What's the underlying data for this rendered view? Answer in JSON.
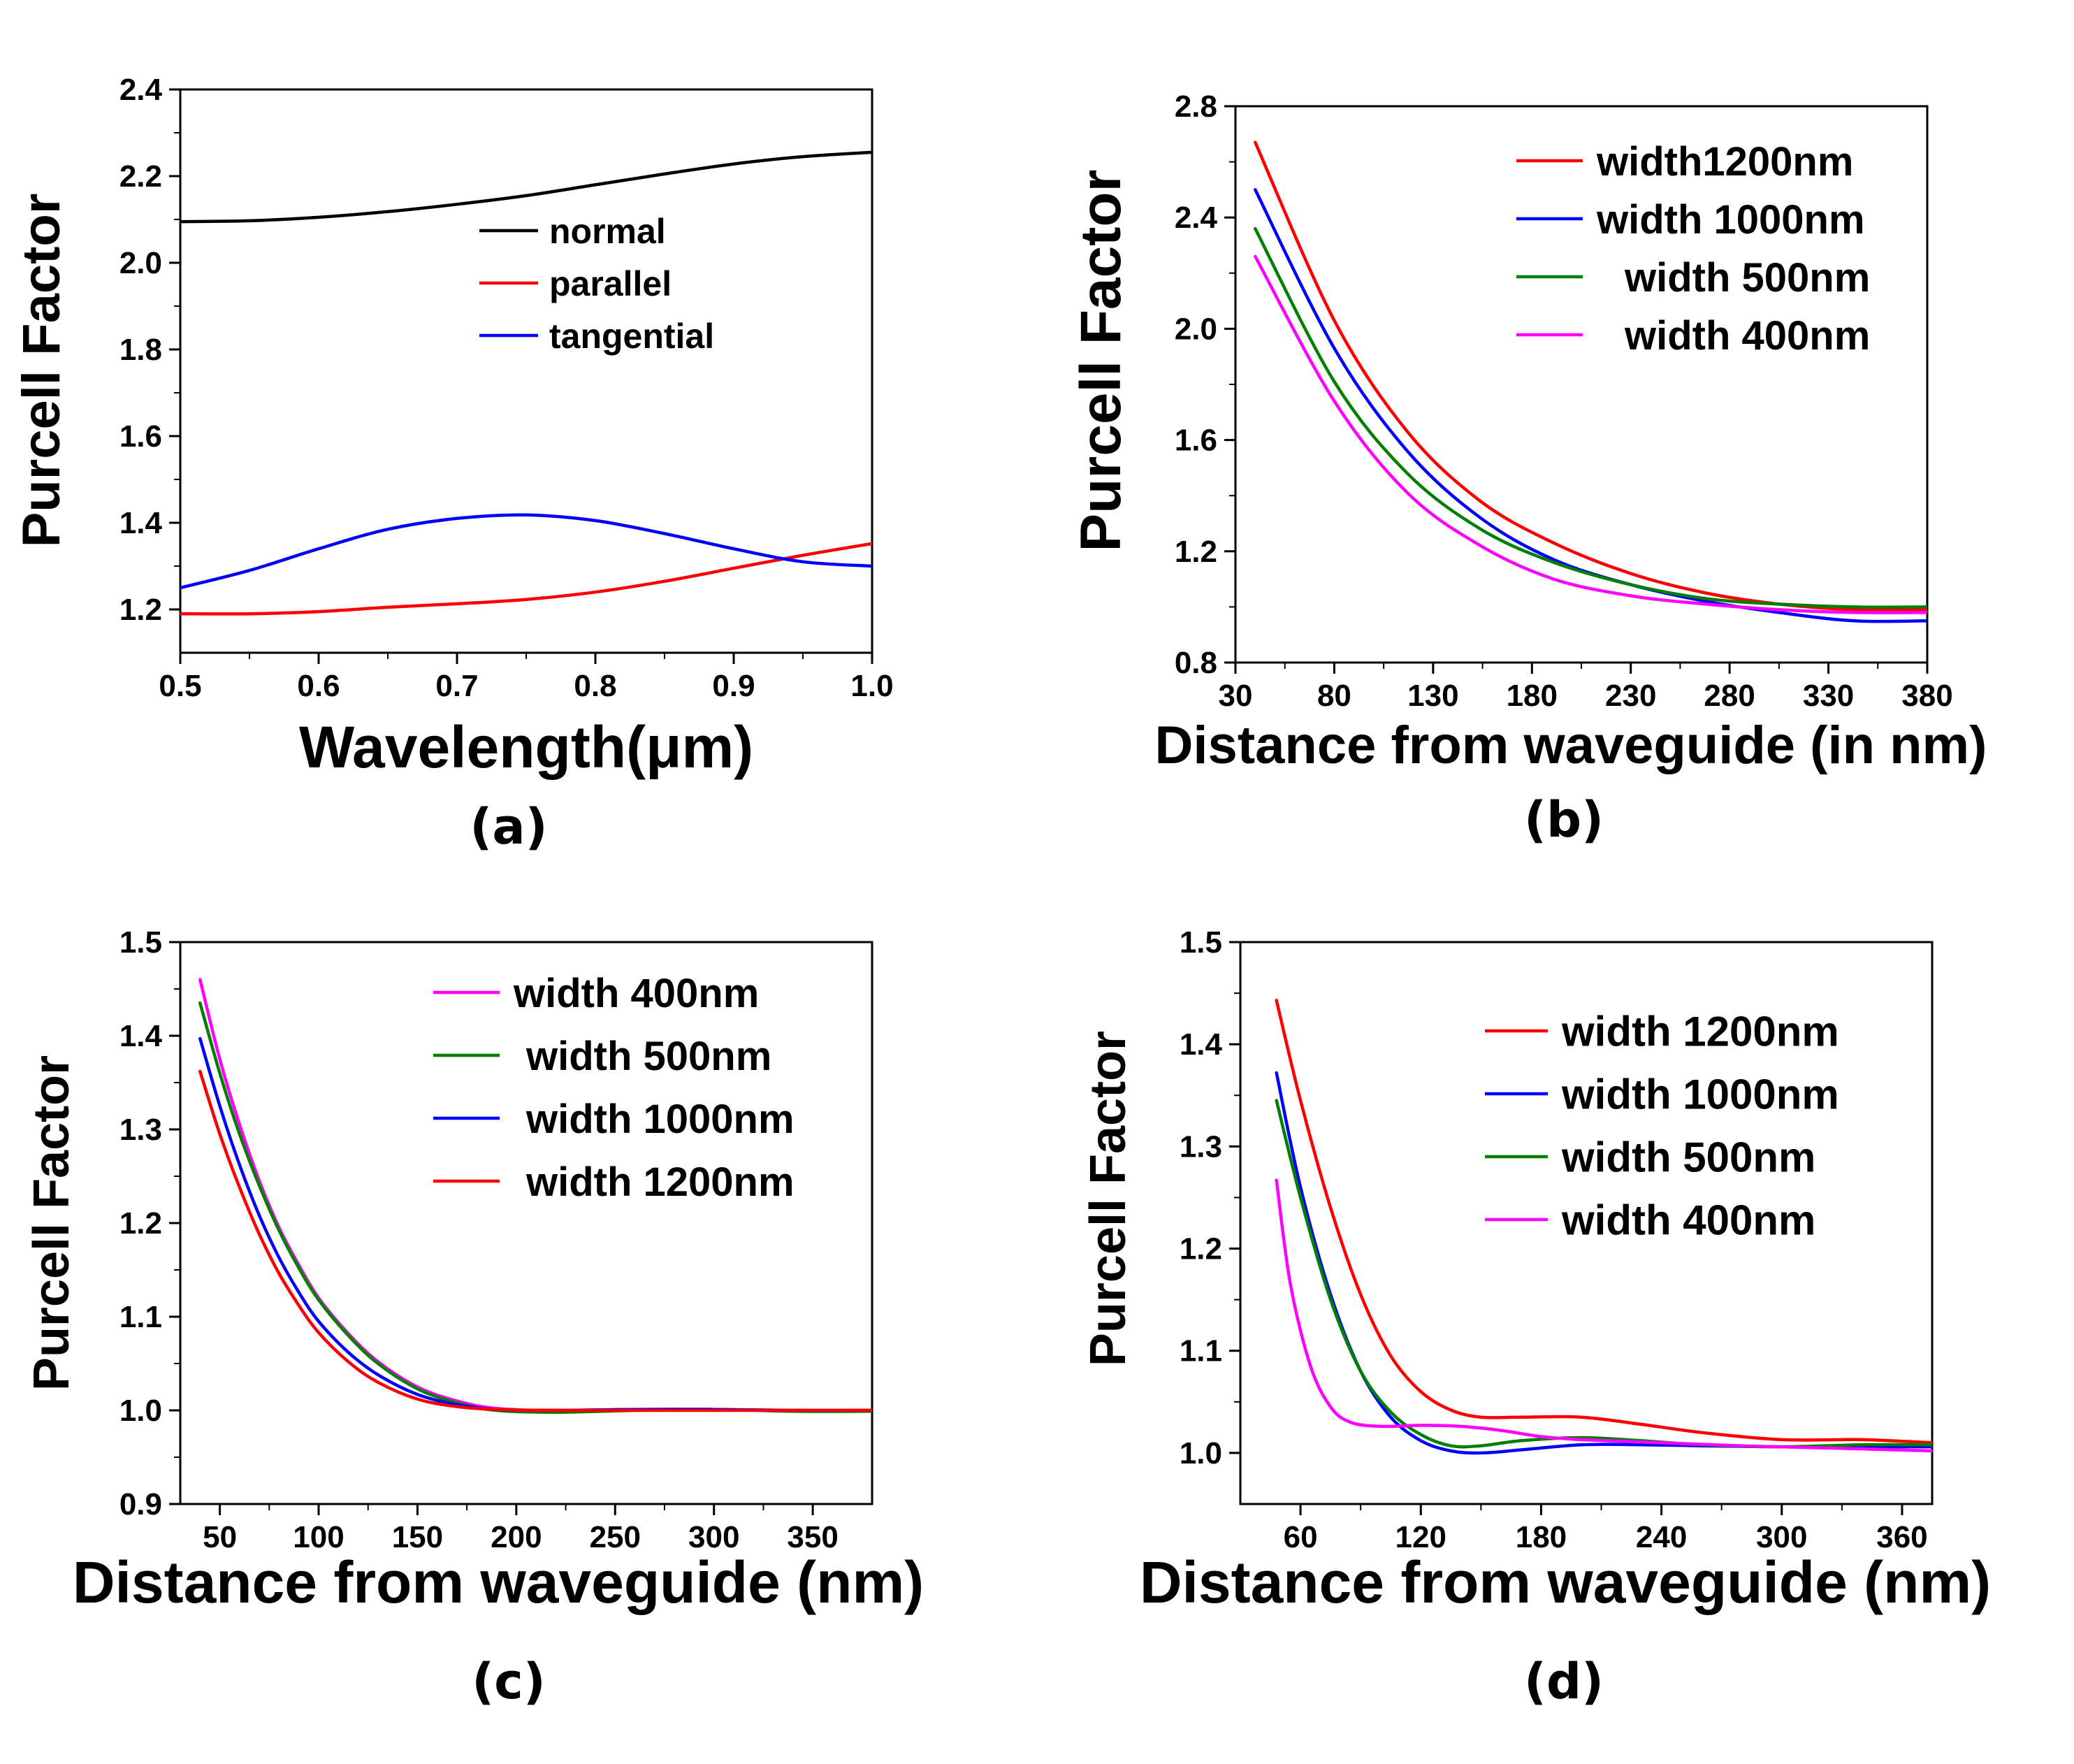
{
  "colors": {
    "black": "#000000",
    "red": "#ff0000",
    "blue": "#0000ff",
    "green": "#007f00",
    "magenta": "#ff00ff"
  },
  "chart_data": [
    {
      "id": "a",
      "panel_label": "(a)",
      "type": "line",
      "xlabel": "Wavelength(μm)",
      "ylabel": "Purcell Factor",
      "xlim": [
        0.5,
        1.0
      ],
      "ylim": [
        1.1,
        2.4
      ],
      "xticks": [
        "0.5",
        "0.6",
        "0.7",
        "0.8",
        "0.9",
        "1.0"
      ],
      "yticks": [
        "1.2",
        "1.4",
        "1.6",
        "1.8",
        "2.0",
        "2.2",
        "2.4"
      ],
      "legend": "center-right",
      "series": [
        {
          "name": "normal",
          "color": "#000000",
          "x": [
            0.5,
            0.55,
            0.6,
            0.65,
            0.7,
            0.75,
            0.8,
            0.85,
            0.9,
            0.95,
            1.0
          ],
          "y": [
            2.095,
            2.097,
            2.105,
            2.118,
            2.135,
            2.155,
            2.18,
            2.205,
            2.228,
            2.245,
            2.255
          ]
        },
        {
          "name": "parallel",
          "color": "#ff0000",
          "x": [
            0.5,
            0.55,
            0.6,
            0.65,
            0.7,
            0.75,
            0.8,
            0.85,
            0.9,
            0.95,
            1.0
          ],
          "y": [
            1.19,
            1.19,
            1.195,
            1.205,
            1.213,
            1.223,
            1.24,
            1.265,
            1.295,
            1.325,
            1.352
          ]
        },
        {
          "name": "tangential",
          "color": "#0000ff",
          "x": [
            0.5,
            0.55,
            0.6,
            0.65,
            0.7,
            0.75,
            0.8,
            0.85,
            0.9,
            0.95,
            1.0
          ],
          "y": [
            1.25,
            1.29,
            1.34,
            1.385,
            1.41,
            1.418,
            1.405,
            1.375,
            1.34,
            1.31,
            1.3
          ]
        }
      ]
    },
    {
      "id": "b",
      "panel_label": "(b)",
      "type": "line",
      "xlabel": "Distance from waveguide (in nm)",
      "ylabel": "Purcell Factor",
      "xlim": [
        30,
        380
      ],
      "ylim": [
        0.8,
        2.8
      ],
      "xticks": [
        "30",
        "80",
        "130",
        "180",
        "230",
        "280",
        "330",
        "380"
      ],
      "yticks": [
        "0.8",
        "1.2",
        "1.6",
        "2.0",
        "2.4",
        "2.8"
      ],
      "legend": "top-right",
      "series": [
        {
          "name": "width1200nm",
          "color": "#ff0000",
          "x": [
            40,
            80,
            117,
            154,
            191,
            230,
            268,
            305,
            343,
            380
          ],
          "y": [
            2.67,
            2.03,
            1.63,
            1.38,
            1.23,
            1.12,
            1.05,
            1.01,
            0.99,
            0.99
          ]
        },
        {
          "name": "width 1000nm",
          "color": "#0000ff",
          "x": [
            40,
            80,
            117,
            154,
            191,
            230,
            268,
            305,
            343,
            380
          ],
          "y": [
            2.5,
            1.93,
            1.56,
            1.32,
            1.17,
            1.08,
            1.02,
            0.98,
            0.95,
            0.95
          ]
        },
        {
          "name": "width 500nm",
          "color": "#007f00",
          "x": [
            40,
            80,
            117,
            154,
            191,
            230,
            268,
            305,
            343,
            380
          ],
          "y": [
            2.36,
            1.81,
            1.48,
            1.28,
            1.16,
            1.08,
            1.03,
            1.01,
            1.0,
            1.0
          ]
        },
        {
          "name": "width 400nm",
          "color": "#ff00ff",
          "x": [
            40,
            80,
            117,
            154,
            191,
            230,
            268,
            305,
            343,
            380
          ],
          "y": [
            2.26,
            1.74,
            1.41,
            1.22,
            1.1,
            1.04,
            1.01,
            0.99,
            0.98,
            0.98
          ]
        }
      ]
    },
    {
      "id": "c",
      "panel_label": "(c)",
      "type": "line",
      "xlabel": "Distance from waveguide (nm)",
      "ylabel": "Purcell Factor",
      "xlim": [
        30,
        380
      ],
      "ylim": [
        0.9,
        1.5
      ],
      "xticks": [
        "50",
        "100",
        "150",
        "200",
        "250",
        "300",
        "350"
      ],
      "yticks": [
        "0.9",
        "1.0",
        "1.1",
        "1.2",
        "1.3",
        "1.4",
        "1.5"
      ],
      "legend": "top-right",
      "series": [
        {
          "name": "width 400nm",
          "color": "#ff00ff",
          "x": [
            40,
            50,
            60,
            70,
            80,
            90,
            100,
            115,
            130,
            150,
            170,
            190,
            220,
            260,
            300,
            340,
            380
          ],
          "y": [
            1.46,
            1.375,
            1.305,
            1.245,
            1.195,
            1.155,
            1.12,
            1.082,
            1.052,
            1.025,
            1.01,
            1.002,
            1.0,
            1.001,
            1.001,
            1.0,
            1.0
          ]
        },
        {
          "name": "width 500nm",
          "color": "#007f00",
          "x": [
            40,
            50,
            60,
            70,
            80,
            90,
            100,
            115,
            130,
            150,
            170,
            190,
            220,
            260,
            300,
            340,
            380
          ],
          "y": [
            1.435,
            1.36,
            1.295,
            1.24,
            1.192,
            1.152,
            1.118,
            1.08,
            1.05,
            1.023,
            1.008,
            1.0,
            0.998,
            1.0,
            1.001,
            0.999,
            0.999
          ]
        },
        {
          "name": "width 1000nm",
          "color": "#0000ff",
          "x": [
            40,
            50,
            60,
            70,
            80,
            90,
            100,
            115,
            130,
            150,
            170,
            190,
            220,
            260,
            300,
            340,
            380
          ],
          "y": [
            1.397,
            1.325,
            1.262,
            1.208,
            1.163,
            1.126,
            1.095,
            1.062,
            1.038,
            1.017,
            1.006,
            1.001,
            1.0,
            1.001,
            1.001,
            1.0,
            1.0
          ]
        },
        {
          "name": "width 1200nm",
          "color": "#ff0000",
          "x": [
            40,
            50,
            60,
            70,
            80,
            90,
            100,
            115,
            130,
            150,
            170,
            190,
            220,
            260,
            300,
            340,
            380
          ],
          "y": [
            1.362,
            1.295,
            1.238,
            1.188,
            1.146,
            1.112,
            1.083,
            1.052,
            1.03,
            1.012,
            1.004,
            1.001,
            1.0,
            1.0,
            1.0,
            1.0,
            1.0
          ]
        }
      ]
    },
    {
      "id": "d",
      "panel_label": "(d)",
      "type": "line",
      "xlabel": "Distance from waveguide (nm)",
      "ylabel": "Purcell Factor",
      "xlim": [
        30,
        375
      ],
      "ylim": [
        0.95,
        1.5
      ],
      "xticks": [
        "60",
        "120",
        "180",
        "240",
        "300",
        "360"
      ],
      "yticks": [
        "1.0",
        "1.1",
        "1.2",
        "1.3",
        "1.4",
        "1.5"
      ],
      "legend": "top-right",
      "series": [
        {
          "name": "width 1200nm",
          "color": "#ff0000",
          "x": [
            48,
            60,
            75,
            90,
            105,
            120,
            135,
            150,
            170,
            200,
            230,
            260,
            300,
            340,
            375
          ],
          "y": [
            1.443,
            1.345,
            1.24,
            1.155,
            1.095,
            1.06,
            1.042,
            1.035,
            1.035,
            1.035,
            1.028,
            1.02,
            1.013,
            1.013,
            1.01
          ]
        },
        {
          "name": "width 1000nm",
          "color": "#0000ff",
          "x": [
            48,
            60,
            75,
            90,
            105,
            120,
            135,
            150,
            170,
            200,
            230,
            260,
            300,
            340,
            375
          ],
          "y": [
            1.372,
            1.26,
            1.155,
            1.08,
            1.035,
            1.012,
            1.002,
            1.0,
            1.003,
            1.008,
            1.008,
            1.007,
            1.006,
            1.006,
            1.006
          ]
        },
        {
          "name": "width 500nm",
          "color": "#007f00",
          "x": [
            48,
            60,
            75,
            90,
            105,
            120,
            135,
            150,
            170,
            200,
            230,
            260,
            300,
            340,
            375
          ],
          "y": [
            1.345,
            1.25,
            1.15,
            1.08,
            1.04,
            1.018,
            1.007,
            1.007,
            1.012,
            1.015,
            1.012,
            1.008,
            1.006,
            1.008,
            1.008
          ]
        },
        {
          "name": "width 400nm",
          "color": "#ff00ff",
          "x": [
            48,
            55,
            65,
            75,
            85,
            100,
            120,
            140,
            160,
            180,
            200,
            240,
            280,
            320,
            375
          ],
          "y": [
            1.267,
            1.165,
            1.085,
            1.045,
            1.03,
            1.026,
            1.027,
            1.026,
            1.022,
            1.016,
            1.013,
            1.01,
            1.007,
            1.005,
            1.002
          ]
        }
      ]
    }
  ]
}
